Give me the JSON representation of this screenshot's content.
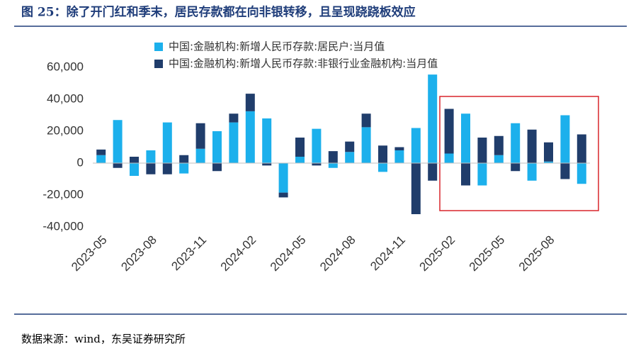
{
  "chart_data": {
    "type": "stacked_bar",
    "title": "图 25：除了开门红和季末，居民存款都在向非银转移，且呈现跷跷板效应",
    "source": "数据来源：wind，东吴证券研究所",
    "categories": [
      "2023-05",
      null,
      null,
      "2023-08",
      null,
      null,
      "2023-11",
      null,
      null,
      "2024-02",
      null,
      null,
      "2024-05",
      null,
      null,
      "2024-08",
      null,
      null,
      "2024-11",
      null,
      null,
      "2025-02",
      null,
      null,
      "2025-05",
      null,
      null,
      "2025-08",
      null,
      null
    ],
    "series": [
      {
        "name": "中国:金融机构:新增人民币存款:居民户:当月值",
        "color": "#1cb0ec",
        "values": [
          5000,
          27000,
          -8000,
          8000,
          25500,
          -6500,
          9000,
          20000,
          25500,
          32500,
          28000,
          -18500,
          4000,
          21500,
          -3000,
          7000,
          22500,
          -5500,
          8000,
          22000,
          55500,
          6000,
          31000,
          -14000,
          5000,
          25000,
          -11000,
          1000,
          30000,
          -13000
        ]
      },
      {
        "name": "中国:金融机构:新增人民币存款:非银行业金融机构:当月值",
        "color": "#203d6b",
        "values": [
          3500,
          -3000,
          4000,
          -7000,
          -7000,
          5000,
          16000,
          -5000,
          5500,
          11000,
          -1500,
          -3000,
          12000,
          -1500,
          7500,
          6500,
          8500,
          11000,
          2000,
          -32000,
          -11000,
          28000,
          -14000,
          16000,
          12000,
          -5000,
          21000,
          12000,
          -10000,
          18000
        ]
      }
    ],
    "ylim": [
      -40000,
      60000
    ],
    "yticks": [
      {
        "value": -40000,
        "label": "-40,000"
      },
      {
        "value": -20000,
        "label": "-20,000"
      },
      0,
      {
        "value": 20000,
        "label": "20,000"
      },
      {
        "value": 40000,
        "label": "40,000"
      },
      {
        "value": 60000,
        "label": "60,000"
      }
    ]
  }
}
